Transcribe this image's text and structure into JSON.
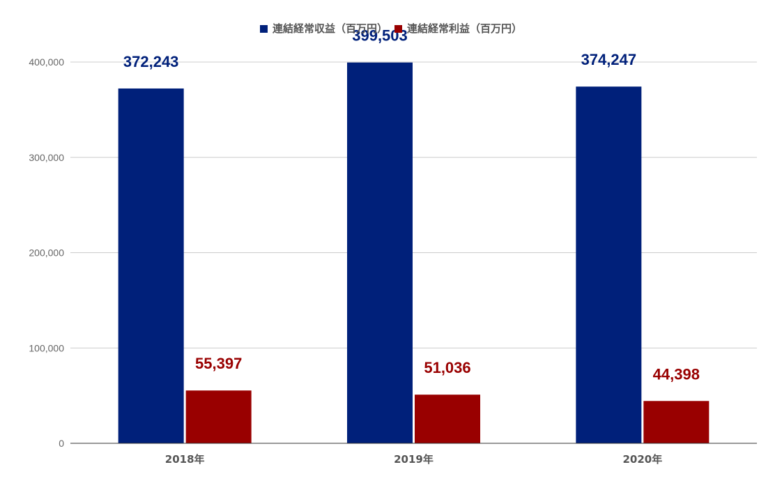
{
  "chart_data": {
    "type": "bar",
    "categories": [
      "2018年",
      "2019年",
      "2020年"
    ],
    "series": [
      {
        "name": "連結経常収益（百万円）",
        "values": [
          372243,
          399503,
          374247
        ],
        "value_labels": [
          "372,243",
          "399,503",
          "374,247"
        ],
        "color": "#00207a"
      },
      {
        "name": "連結経常利益（百万円）",
        "values": [
          55397,
          51036,
          44398
        ],
        "value_labels": [
          "55,397",
          "51,036",
          "44,398"
        ],
        "color": "#990000"
      }
    ],
    "ylim": [
      0,
      400000
    ],
    "yticks": [
      0,
      100000,
      200000,
      300000,
      400000
    ],
    "ytick_labels": [
      "0",
      "100,000",
      "200,000",
      "300,000",
      "400,000"
    ],
    "grid": true,
    "legend_position": "top-center",
    "gridline_color": "#cccccc",
    "axis_color": "#333333"
  }
}
